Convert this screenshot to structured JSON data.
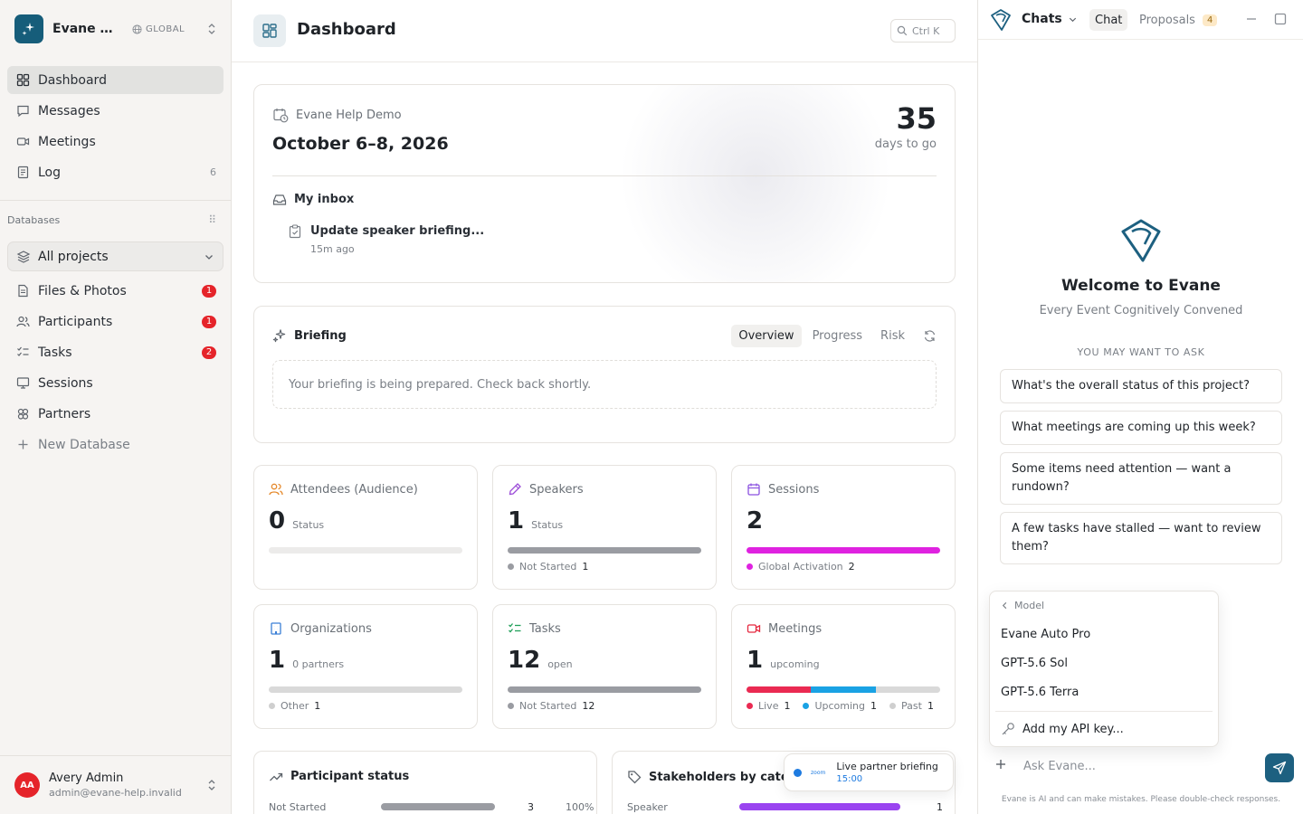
{
  "workspace": {
    "name": "Evane He...",
    "scope": "GLOBAL"
  },
  "nav": {
    "items": [
      {
        "label": "Dashboard",
        "count": ""
      },
      {
        "label": "Messages",
        "count": ""
      },
      {
        "label": "Meetings",
        "count": ""
      },
      {
        "label": "Log",
        "count": "6"
      }
    ]
  },
  "databases": {
    "heading": "Databases",
    "selector": "All projects",
    "items": [
      {
        "label": "Files & Photos",
        "badge": "1"
      },
      {
        "label": "Participants",
        "badge": "1"
      },
      {
        "label": "Tasks",
        "badge": "2"
      },
      {
        "label": "Sessions",
        "badge": ""
      },
      {
        "label": "Partners",
        "badge": ""
      }
    ],
    "new_label": "New Database"
  },
  "user": {
    "initials": "AA",
    "name": "Avery Admin",
    "email": "admin@evane-help.invalid"
  },
  "header": {
    "title": "Dashboard",
    "shortcut": "Ctrl K"
  },
  "event": {
    "name": "Evane Help Demo",
    "dates": "October 6–8, 2026",
    "countdown": "35",
    "countdown_label": "days to go",
    "inbox_title": "My inbox",
    "inbox_item": "Update speaker briefing...",
    "inbox_time": "15m ago"
  },
  "briefing": {
    "title": "Briefing",
    "tabs": [
      "Overview",
      "Progress",
      "Risk"
    ],
    "empty": "Your briefing is being prepared. Check back shortly."
  },
  "stats": [
    {
      "title": "Attendees (Audience)",
      "value": "0",
      "sub": "Status",
      "segments": [],
      "legend": []
    },
    {
      "title": "Speakers",
      "value": "1",
      "sub": "Status",
      "segments": [
        {
          "color": "#9a9ca2",
          "fraction": 1.0
        }
      ],
      "legend": [
        {
          "label": "Not Started",
          "count": "1",
          "color": "#9a9ca2"
        }
      ]
    },
    {
      "title": "Sessions",
      "value": "2",
      "sub": "",
      "segments": [
        {
          "color": "#df22e0",
          "fraction": 1.0
        }
      ],
      "legend": [
        {
          "label": "Global Activation",
          "count": "2",
          "color": "#df22e0"
        }
      ]
    },
    {
      "title": "Organizations",
      "value": "1",
      "sub": "0 partners",
      "segments": [
        {
          "color": "#d9d9d9",
          "fraction": 1.0
        }
      ],
      "legend": [
        {
          "label": "Other",
          "count": "1",
          "color": "#cfcfcf"
        }
      ]
    },
    {
      "title": "Tasks",
      "value": "12",
      "sub": "open",
      "segments": [
        {
          "color": "#9a9ca2",
          "fraction": 1.0
        }
      ],
      "legend": [
        {
          "label": "Not Started",
          "count": "12",
          "color": "#9a9ca2"
        }
      ]
    },
    {
      "title": "Meetings",
      "value": "1",
      "sub": "upcoming",
      "segments": [
        {
          "color": "#ea2a52",
          "fraction": 0.33
        },
        {
          "color": "#1aa2e4",
          "fraction": 0.34
        },
        {
          "color": "#d9d9d9",
          "fraction": 0.33
        }
      ],
      "legend": [
        {
          "label": "Live",
          "count": "1",
          "color": "#ea2a52"
        },
        {
          "label": "Upcoming",
          "count": "1",
          "color": "#1aa2e4"
        },
        {
          "label": "Past",
          "count": "1",
          "color": "#cfcfcf"
        }
      ]
    }
  ],
  "participant_status": {
    "title": "Participant status",
    "row_label": "Not Started",
    "row_count": "3",
    "row_pct": "100%"
  },
  "stakeholders": {
    "title": "Stakeholders by categ",
    "row_label": "Speaker",
    "row_count": "1"
  },
  "toast": {
    "title": "Live partner briefing",
    "time": "15:00",
    "provider": "zoom"
  },
  "chat": {
    "dropdown": "Chats",
    "tab_chat": "Chat",
    "tab_proposals": "Proposals",
    "proposals_count": "4",
    "welcome_title": "Welcome to Evane",
    "welcome_sub": "Every Event Cognitively Convened",
    "ask_heading": "YOU MAY WANT TO ASK",
    "suggestions": [
      "What's the overall status of this project?",
      "What meetings are coming up this week?",
      "Some items need attention — want a rundown?",
      "A few tasks have stalled — want to review them?"
    ],
    "model_menu": {
      "back": "Model",
      "options": [
        "Evane Auto Pro",
        "GPT-5.6 Sol",
        "GPT-5.6 Terra"
      ],
      "api_key": "Add my API key..."
    },
    "composer_placeholder": "Ask Evane...",
    "disclaimer": "Evane is AI and can make mistakes. Please double-check responses."
  },
  "colors": {
    "accent": "#1d6080",
    "badge": "#e5242a",
    "sidebar_bg": "#f6f4f2"
  }
}
